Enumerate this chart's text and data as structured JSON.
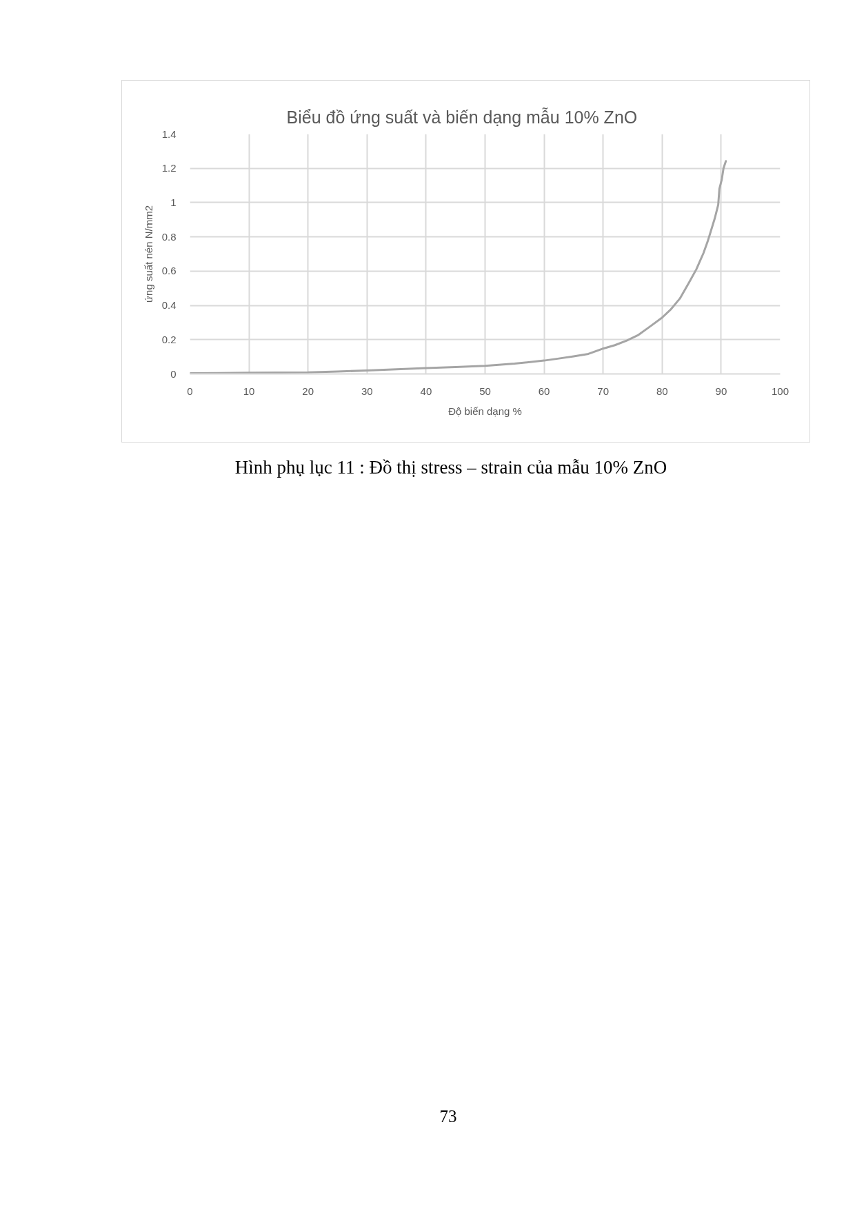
{
  "chart_data": {
    "type": "line",
    "title": "Biểu đồ ứng suất và biến dạng mẫu 10% ZnO",
    "xlabel": "Độ biến dạng %",
    "ylabel": "ứng suất nén N/mm2",
    "annotations": [
      "Hình phụ lục 11 : Đồ thị stress – strain của mẫu 10% ZnO",
      "73"
    ],
    "x": [
      0,
      5,
      10,
      15,
      20,
      25,
      30,
      35,
      40,
      45,
      50,
      55,
      60,
      62.5,
      65,
      67.5,
      70,
      72,
      74,
      76,
      78,
      80,
      81.5,
      83,
      84.5,
      85.8,
      87,
      87.7,
      88.3,
      88.9,
      89.5,
      89.7,
      90.1,
      90.4,
      90.8
    ],
    "values": [
      0.004,
      0.005,
      0.007,
      0.008,
      0.009,
      0.014,
      0.02,
      0.027,
      0.034,
      0.04,
      0.047,
      0.06,
      0.078,
      0.09,
      0.103,
      0.117,
      0.148,
      0.168,
      0.195,
      0.228,
      0.278,
      0.329,
      0.378,
      0.44,
      0.53,
      0.611,
      0.705,
      0.772,
      0.839,
      0.906,
      0.987,
      1.081,
      1.134,
      1.201,
      1.242
    ],
    "color": "#a5a5a5",
    "xlim": [
      0,
      100
    ],
    "ylim": [
      0,
      1.4
    ],
    "xticks": [
      0,
      10,
      20,
      30,
      40,
      50,
      60,
      70,
      80,
      90,
      100
    ],
    "yticks": [
      0,
      0.2,
      0.4,
      0.6,
      0.8,
      1,
      1.2,
      1.4
    ],
    "grid": true
  }
}
